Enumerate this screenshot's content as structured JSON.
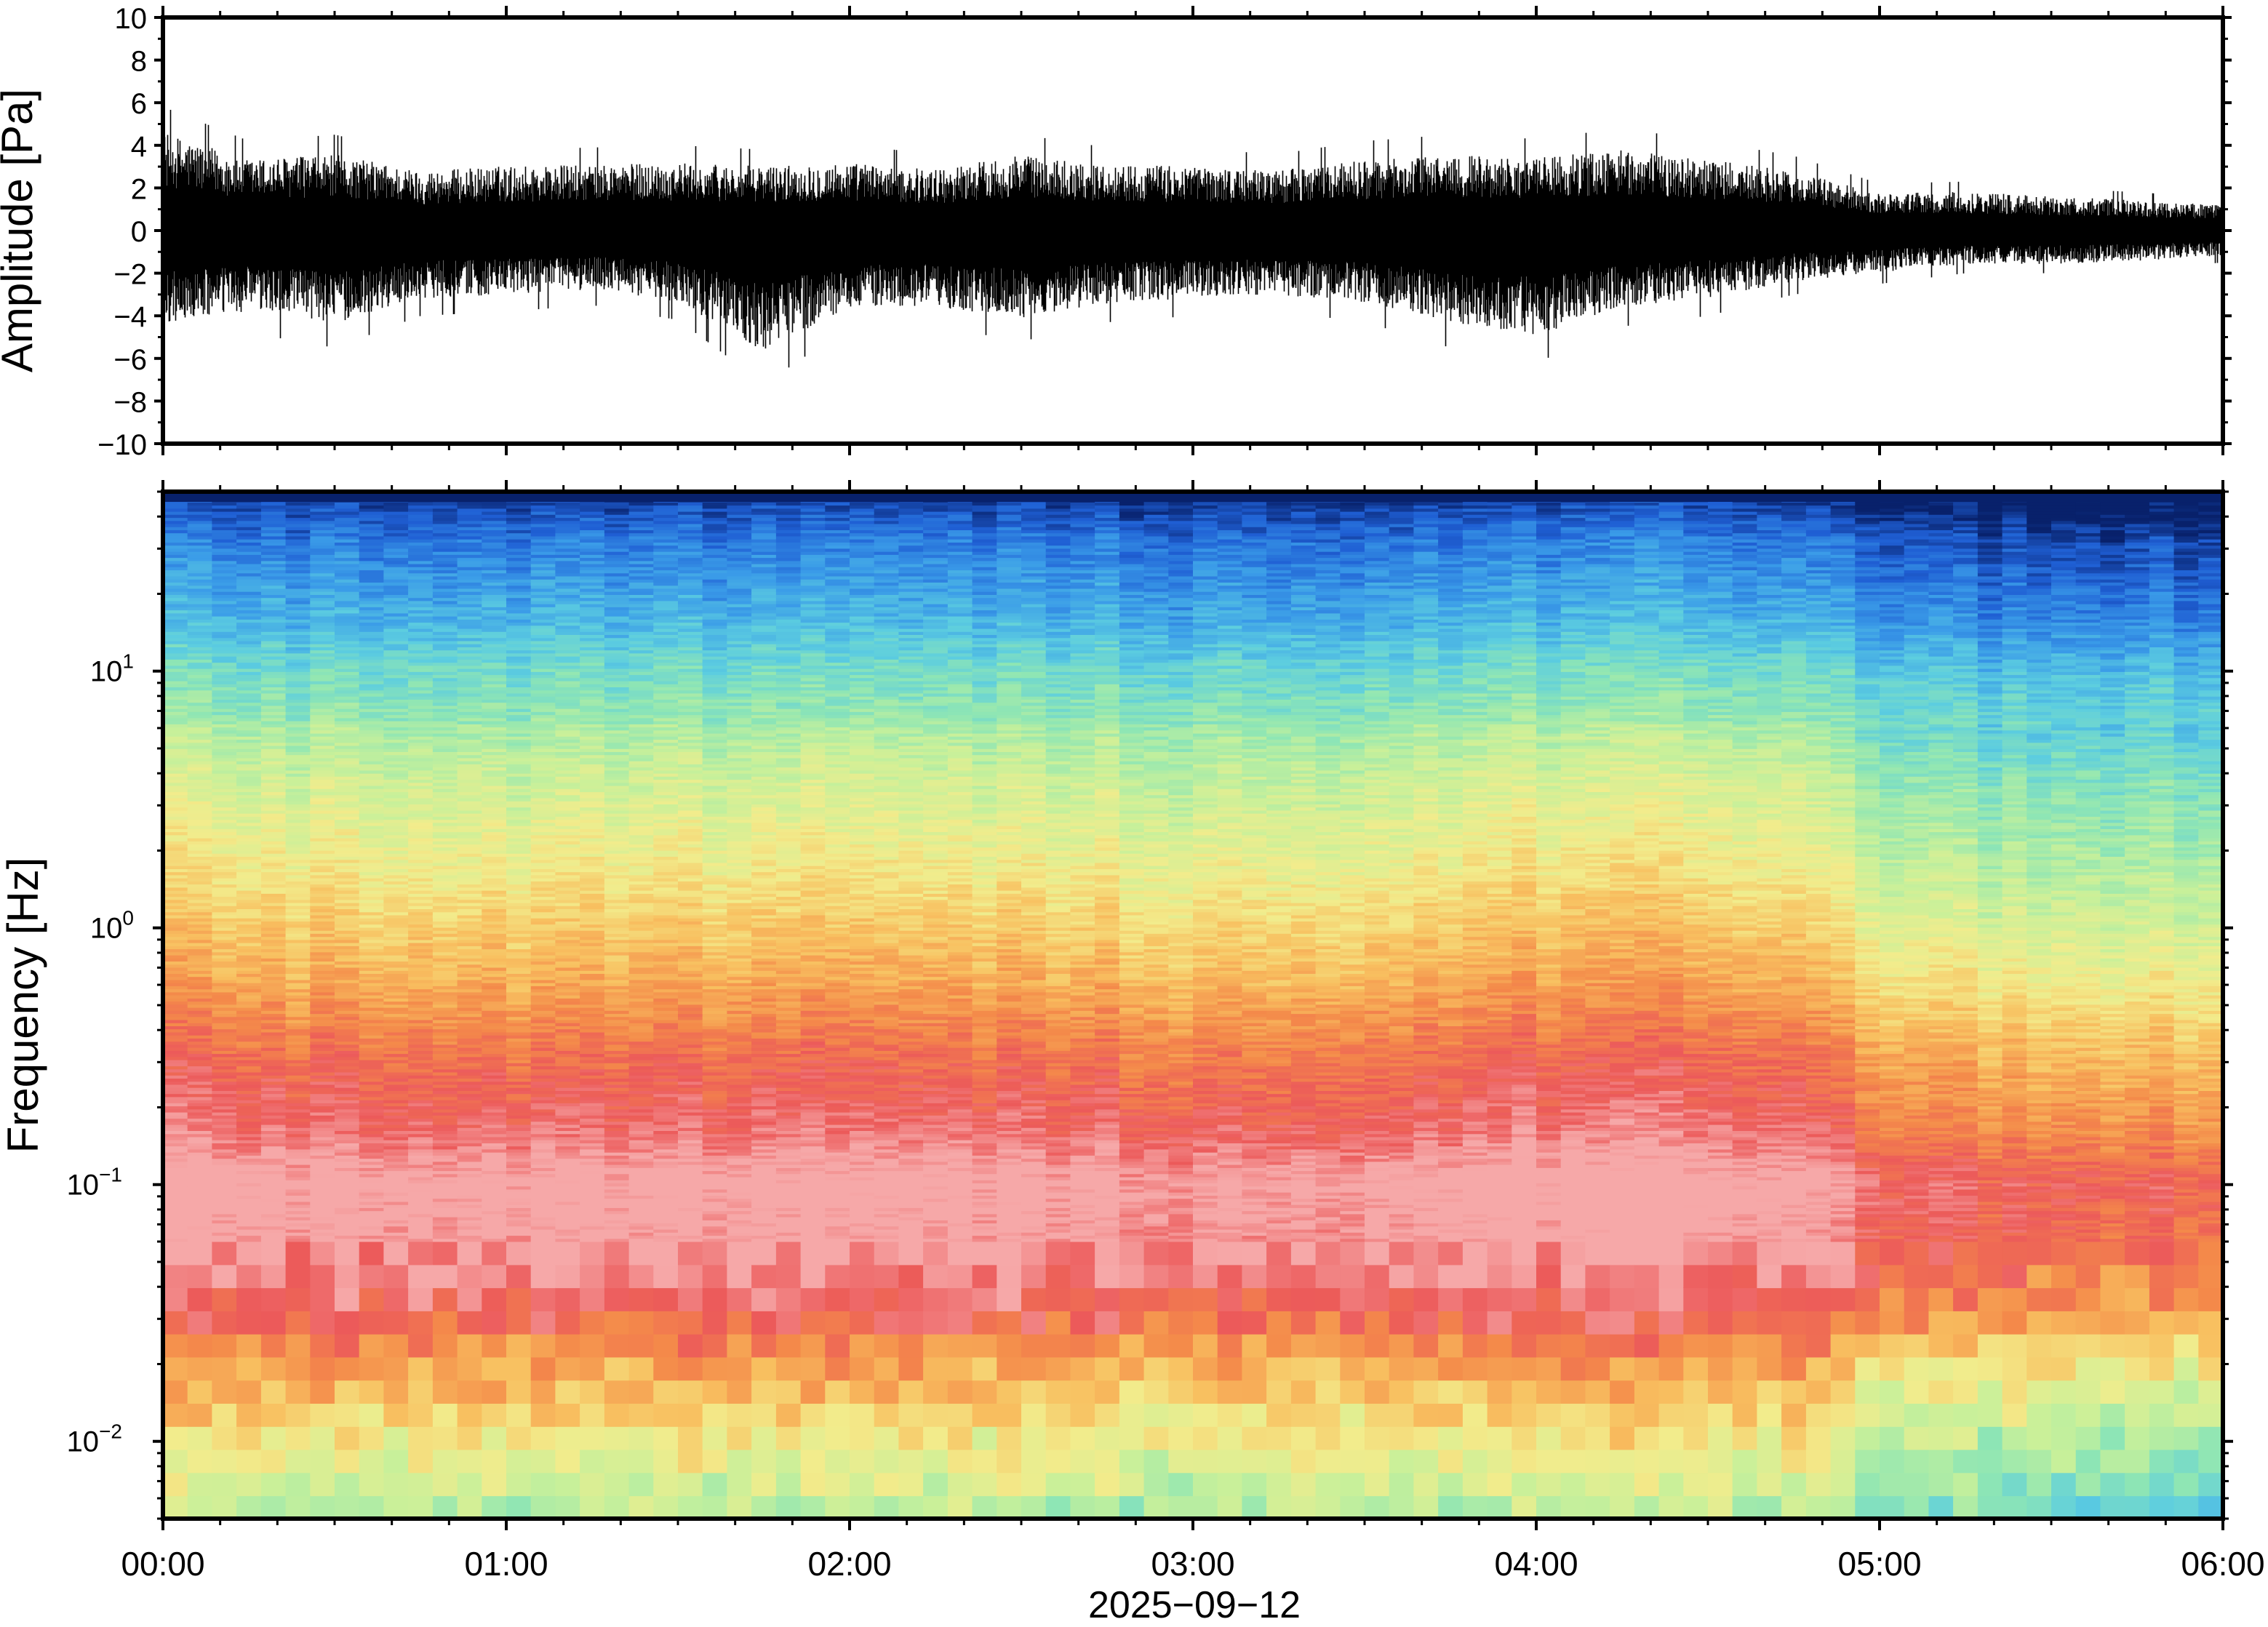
{
  "chart_data": [
    {
      "type": "line",
      "panel": "waveform",
      "ylabel": "Amplitude [Pa]",
      "ylim": [
        -10,
        10
      ],
      "yticks": [
        10,
        8,
        6,
        4,
        2,
        0,
        -2,
        -4,
        -6,
        -8,
        -10
      ],
      "ytick_labels": [
        "10",
        "8",
        "6",
        "4",
        "2",
        "0",
        "−2",
        "−4",
        "−6",
        "−8",
        "−10"
      ],
      "x_hours": [
        0,
        0.25,
        0.5,
        0.75,
        1.0,
        1.25,
        1.5,
        1.75,
        2.0,
        2.25,
        2.5,
        2.75,
        3.0,
        3.25,
        3.5,
        3.75,
        4.0,
        4.25,
        4.5,
        4.75,
        5.0,
        5.25,
        5.5,
        5.75,
        6.0
      ],
      "envelope_max": [
        5.8,
        4.2,
        4.5,
        3.5,
        3.8,
        3.9,
        4.0,
        3.8,
        4.0,
        3.6,
        4.5,
        3.9,
        3.8,
        3.6,
        4.2,
        4.5,
        4.3,
        4.8,
        4.2,
        3.5,
        2.2,
        2.3,
        2.0,
        1.8,
        1.5
      ],
      "envelope_min": [
        -5.5,
        -4.8,
        -5.5,
        -4.0,
        -3.8,
        -3.5,
        -4.2,
        -7.2,
        -4.5,
        -4.5,
        -5.2,
        -4.3,
        -4.0,
        -3.8,
        -4.3,
        -5.5,
        -6.2,
        -4.5,
        -4.0,
        -3.0,
        -2.5,
        -2.0,
        -2.0,
        -1.8,
        -1.5
      ],
      "line_color": "#000000"
    },
    {
      "type": "heatmap",
      "panel": "spectrogram",
      "ylabel": "Frequency [Hz]",
      "yscale": "log",
      "ylim": [
        0.005,
        50
      ],
      "ytick_labels": [
        {
          "base": "10",
          "exp": "1"
        },
        {
          "base": "10",
          "exp": "0"
        },
        {
          "base": "10",
          "exp": "−1"
        },
        {
          "base": "10",
          "exp": "−2"
        }
      ],
      "ytick_values": [
        10,
        1,
        0.1,
        0.01
      ],
      "colormap": [
        "#08216b",
        "#1f5fd4",
        "#3a9be8",
        "#5ccde0",
        "#8fe6b4",
        "#c8f09a",
        "#f2ec8c",
        "#f8c060",
        "#f48a4a",
        "#ec5a5a",
        "#f6a8a8"
      ],
      "relative_power_profile": {
        "log_freq": [
          1.7,
          1.5,
          1.2,
          1.0,
          0.6,
          0.2,
          -0.2,
          -0.5,
          -0.8,
          -1.0,
          -1.3,
          -1.5,
          -1.7,
          -2.0,
          -2.3
        ],
        "level": [
          0.0,
          0.12,
          0.22,
          0.32,
          0.46,
          0.56,
          0.68,
          0.8,
          0.88,
          0.98,
          0.93,
          0.85,
          0.7,
          0.55,
          0.42
        ]
      },
      "time_activity_hours": [
        0,
        0.5,
        1.0,
        1.5,
        2.0,
        2.5,
        3.0,
        3.5,
        4.0,
        4.5,
        4.8,
        5.0,
        5.5,
        6.0
      ],
      "time_activity_level": [
        0.08,
        0.05,
        0.04,
        0.05,
        0.06,
        0.05,
        0.03,
        0.05,
        0.08,
        0.07,
        0.05,
        -0.07,
        -0.08,
        -0.1
      ]
    }
  ],
  "x_axis": {
    "tick_labels": [
      "00:00",
      "01:00",
      "02:00",
      "03:00",
      "04:00",
      "05:00",
      "06:00"
    ],
    "tick_hours": [
      0,
      1,
      2,
      3,
      4,
      5,
      6
    ],
    "date_label": "2025−09−12"
  }
}
